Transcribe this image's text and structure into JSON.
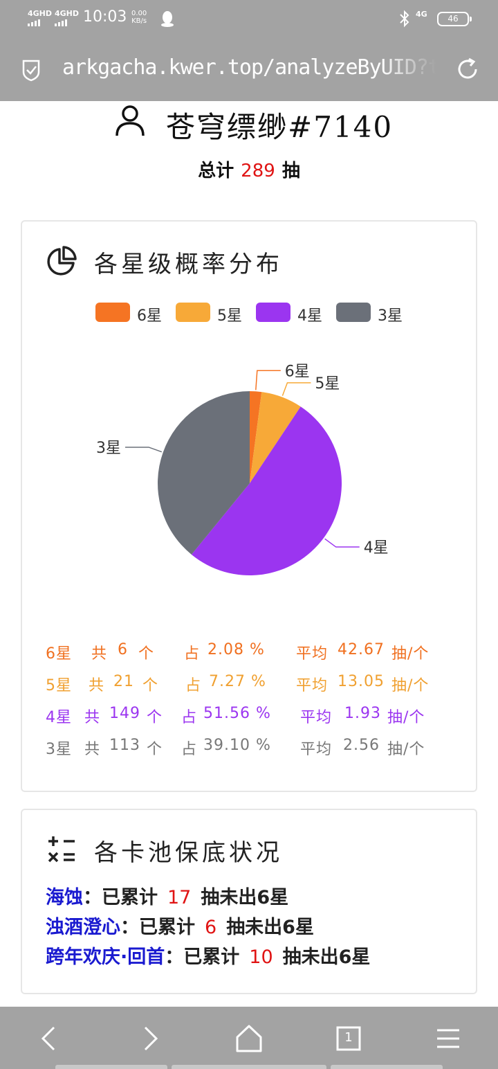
{
  "status_bar": {
    "signal1": "4GHD",
    "signal2": "4GHD",
    "time": "10:03",
    "speed_value": "0.00",
    "speed_unit": "KB/s",
    "network": "4G",
    "battery": "46"
  },
  "browser": {
    "url": "arkgacha.kwer.top/analyzeByUID?to"
  },
  "header": {
    "user_name": "苍穹缥缈#7140",
    "total_prefix": "总计",
    "total_count": "289",
    "total_suffix": "抽"
  },
  "distribution": {
    "title": "各星级概率分布",
    "legend": [
      {
        "label": "6星",
        "color": "#f57423"
      },
      {
        "label": "5星",
        "color": "#f7a938"
      },
      {
        "label": "4星",
        "color": "#9b35f0"
      },
      {
        "label": "3星",
        "color": "#6b7079"
      }
    ],
    "stats": [
      {
        "star": "6星",
        "gong": "共",
        "count": "6",
        "ge": "个",
        "zhan": "占",
        "pct": "2.08 %",
        "avg_label": "平均",
        "avg": "42.67",
        "unit": "抽/个",
        "color": "#f07020"
      },
      {
        "star": "5星",
        "gong": "共",
        "count": "21",
        "ge": "个",
        "zhan": "占",
        "pct": "7.27 %",
        "avg_label": "平均",
        "avg": "13.05",
        "unit": "抽/个",
        "color": "#f0a030"
      },
      {
        "star": "4星",
        "gong": "共",
        "count": "149",
        "ge": "个",
        "zhan": "占",
        "pct": "51.56 %",
        "avg_label": "平均",
        "avg": "1.93",
        "unit": "抽/个",
        "color": "#9b35f0"
      },
      {
        "star": "3星",
        "gong": "共",
        "count": "113",
        "ge": "个",
        "zhan": "占",
        "pct": "39.10 %",
        "avg_label": "平均",
        "avg": "2.56",
        "unit": "抽/个",
        "color": "#777777"
      }
    ]
  },
  "chart_data": {
    "type": "pie",
    "title": "各星级概率分布",
    "legend_position": "top",
    "series": [
      {
        "name": "6星",
        "value": 6,
        "color": "#f57423"
      },
      {
        "name": "5星",
        "value": 21,
        "color": "#f7a938"
      },
      {
        "name": "4星",
        "value": 149,
        "color": "#9b35f0"
      },
      {
        "name": "3星",
        "value": 113,
        "color": "#6b7079"
      }
    ]
  },
  "pity": {
    "title": "各卡池保底状况",
    "rows": [
      {
        "pool": "海蚀",
        "colon": "：",
        "prefix": "已累计",
        "count": "17",
        "suffix": "抽未出6星"
      },
      {
        "pool": "浊酒澄心",
        "colon": "：",
        "prefix": "已累计",
        "count": "6",
        "suffix": "抽未出6星"
      },
      {
        "pool": "跨年欢庆·回首",
        "colon": "：",
        "prefix": "已累计",
        "count": "10",
        "suffix": "抽未出6星"
      }
    ]
  },
  "navbar": {
    "tab_count": "1"
  }
}
